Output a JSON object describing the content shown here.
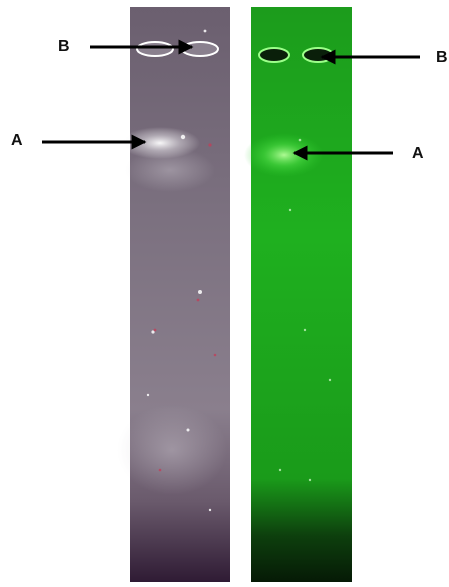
{
  "figure": {
    "labels": {
      "left_top": "B",
      "left_band": "A",
      "right_top": "B",
      "right_band": "A"
    }
  },
  "colors": {
    "left_gel": "#6e6270",
    "left_gel_dark": "#35213a",
    "left_band_glow": "#ffffff",
    "right_gel": "#1fb21f",
    "right_gel_dark": "#0a2a0a",
    "right_band_glow": "#7dff6a",
    "arrow": "#000000"
  }
}
